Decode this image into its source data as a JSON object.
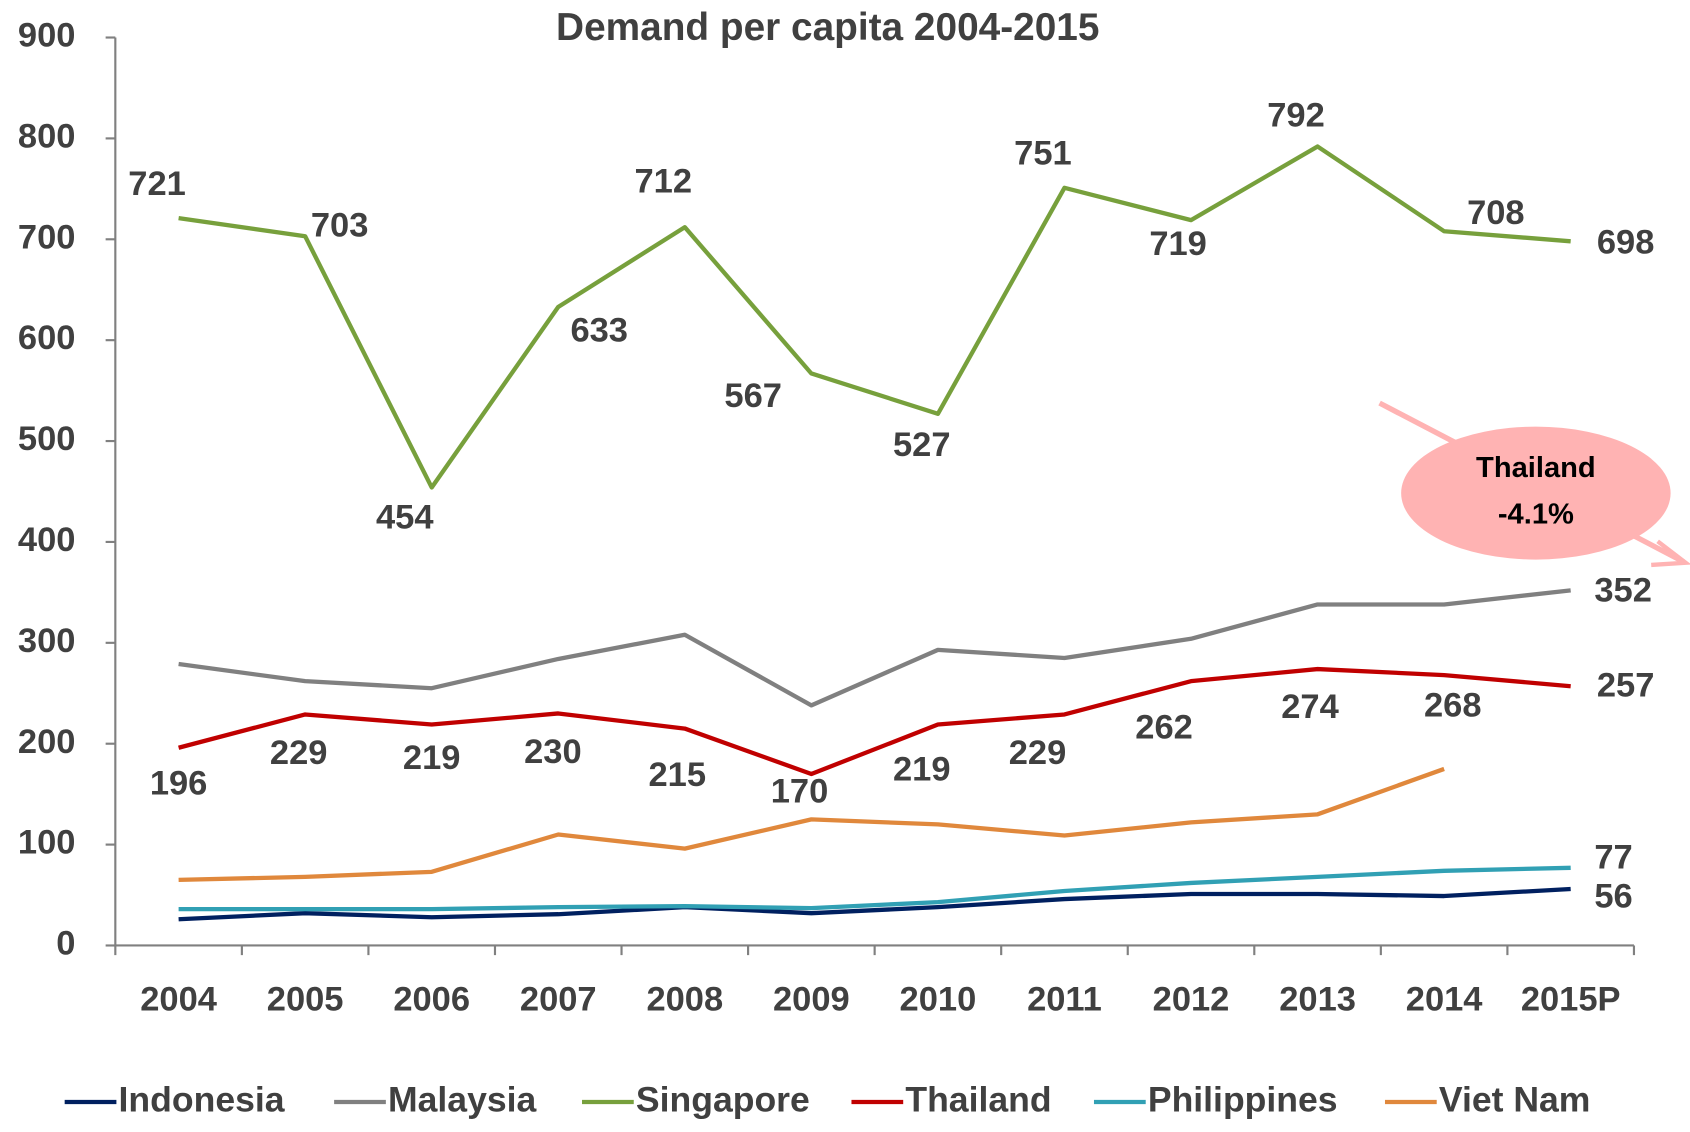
{
  "chart_data": {
    "type": "line",
    "title": "Demand per capita 2004-2015",
    "categories": [
      "2004",
      "2005",
      "2006",
      "2007",
      "2008",
      "2009",
      "2010",
      "2011",
      "2012",
      "2013",
      "2014",
      "2015P"
    ],
    "ylim": [
      0,
      900
    ],
    "yticks": [
      0,
      100,
      200,
      300,
      400,
      500,
      600,
      700,
      800,
      900
    ],
    "legend": "bottom",
    "series": [
      {
        "name": "Indonesia",
        "color": "#002060",
        "data_labels": "last",
        "values": [
          26,
          32,
          28,
          31,
          38,
          32,
          38,
          46,
          51,
          51,
          49,
          56
        ]
      },
      {
        "name": "Malaysia",
        "color": "#808080",
        "data_labels": "last",
        "values": [
          279,
          262,
          255,
          284,
          308,
          238,
          293,
          285,
          304,
          338,
          338,
          352
        ]
      },
      {
        "name": "Singapore",
        "color": "#77a03c",
        "data_labels": "all",
        "values": [
          721,
          703,
          454,
          633,
          712,
          567,
          527,
          751,
          719,
          792,
          708,
          698
        ]
      },
      {
        "name": "Thailand",
        "color": "#c00000",
        "data_labels": "all",
        "values": [
          196,
          229,
          219,
          230,
          215,
          170,
          219,
          229,
          262,
          274,
          268,
          257
        ]
      },
      {
        "name": "Philippines",
        "color": "#31a0b4",
        "data_labels": "last",
        "values": [
          36,
          36,
          36,
          38,
          39,
          37,
          43,
          54,
          62,
          68,
          74,
          77
        ]
      },
      {
        "name": "Viet Nam",
        "color": "#e0883c",
        "data_labels": "none",
        "values": [
          65,
          68,
          73,
          110,
          96,
          125,
          120,
          109,
          122,
          130,
          175,
          null
        ]
      }
    ],
    "annotation": {
      "lines": [
        "Thailand",
        "-4.1%"
      ]
    }
  }
}
